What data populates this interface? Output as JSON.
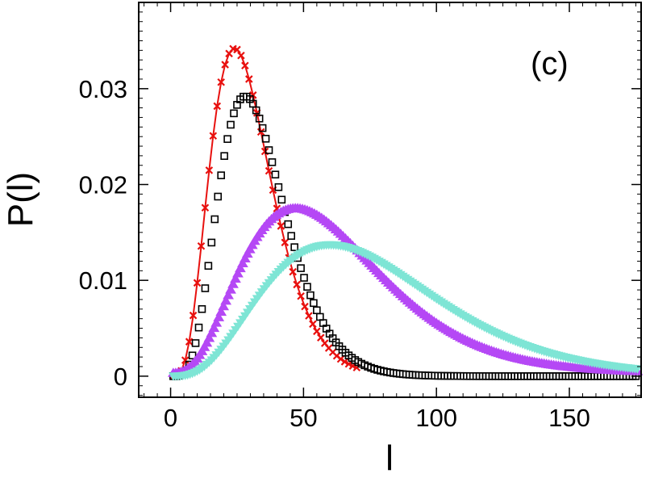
{
  "chart_data": {
    "type": "scatter",
    "title": "",
    "panel_label": "(c)",
    "xlabel": "l",
    "ylabel": "P(l)",
    "xlim": [
      -12,
      177
    ],
    "ylim": [
      -0.0022,
      0.039
    ],
    "xticks": [
      0,
      50,
      100,
      150
    ],
    "xtick_labels": [
      "0",
      "50",
      "100",
      "150"
    ],
    "yticks": [
      0,
      0.01,
      0.02,
      0.03
    ],
    "ytick_labels": [
      "0",
      "0.01",
      "0.02",
      "0.03"
    ],
    "grid": false,
    "legend": "none",
    "series": [
      {
        "name": "red-crosses",
        "marker": "x",
        "color": "#e8110f",
        "line": true,
        "x_start": 1,
        "x_end": 71,
        "x_step": 1.5,
        "peak_x": 24,
        "peak_y": 0.0342,
        "tail_y": 0.0,
        "shape": "gamma",
        "k": 4.3
      },
      {
        "name": "black-squares",
        "marker": "square",
        "color": "#000000",
        "line": false,
        "x_start": 1,
        "x_end": 176,
        "x_step": 1.2,
        "peak_x": 28,
        "peak_y": 0.0292,
        "tail_y": 0.0,
        "shape": "gamma",
        "k": 5.0
      },
      {
        "name": "purple-triangles",
        "marker": "triangle",
        "color": "#b548f5",
        "line": false,
        "x_start": 1,
        "x_end": 176,
        "x_step": 0.9,
        "peak_x": 47,
        "peak_y": 0.0172,
        "tail_y": 0.0003,
        "shape": "gamma",
        "k": 3.2
      },
      {
        "name": "turquoise-triangles",
        "marker": "triangle-down",
        "color": "#7ee5d5",
        "line": false,
        "x_start": 1,
        "x_end": 176,
        "x_step": 0.9,
        "peak_x": 60,
        "peak_y": 0.0137,
        "tail_y": 0.0,
        "shape": "gamma",
        "k": 3.4
      }
    ]
  }
}
